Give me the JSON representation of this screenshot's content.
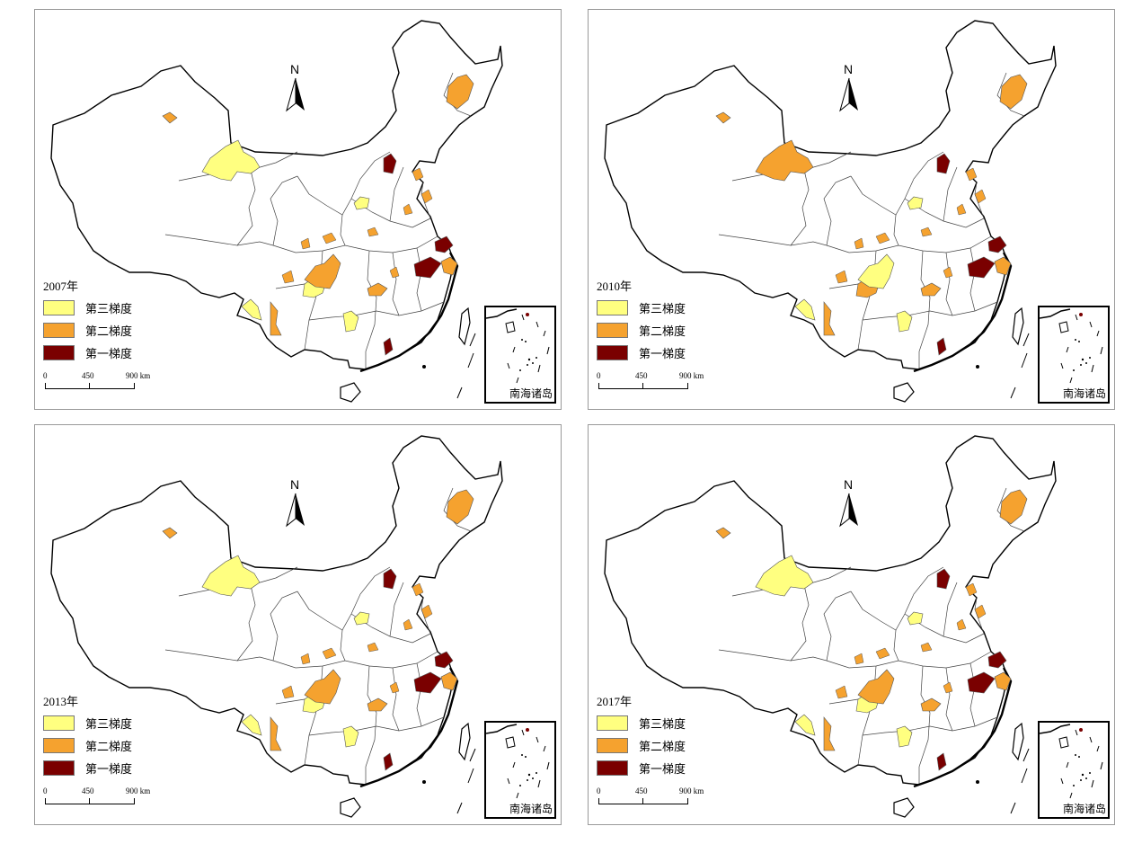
{
  "panels": [
    {
      "year_label": "2007年",
      "colors": {
        "c1": "#ffff80",
        "c2": "#ffff80",
        "c3": "#f5a22f",
        "c4": "#f5a22f",
        "c5": "#f5a22f",
        "c6": "#f5a22f",
        "c7": "#f5a22f",
        "c8": "#f5a22f",
        "c9": "#ffff80",
        "c10": "#ffff80",
        "c11": "#ffff80",
        "c12": "#7a0000",
        "c13": "#7a0000",
        "c14": "#7a0000",
        "c15": "#7a0000"
      }
    },
    {
      "year_label": "2010年",
      "colors": {
        "c1": "#f5a22f",
        "c2": "#f5a22f",
        "c3": "#ffff80",
        "c4": "#f5a22f",
        "c5": "#f5a22f",
        "c6": "#f5a22f",
        "c7": "#f5a22f",
        "c8": "#f5a22f",
        "c9": "#ffff80",
        "c10": "#ffff80",
        "c11": "#ffff80",
        "c12": "#7a0000",
        "c13": "#7a0000",
        "c14": "#7a0000",
        "c15": "#7a0000"
      }
    },
    {
      "year_label": "2013年",
      "colors": {
        "c1": "#ffff80",
        "c2": "#ffff80",
        "c3": "#f5a22f",
        "c4": "#f5a22f",
        "c5": "#f5a22f",
        "c6": "#f5a22f",
        "c7": "#f5a22f",
        "c8": "#f5a22f",
        "c9": "#ffff80",
        "c10": "#ffff80",
        "c11": "#ffff80",
        "c12": "#7a0000",
        "c13": "#7a0000",
        "c14": "#7a0000",
        "c15": "#7a0000"
      }
    },
    {
      "year_label": "2017年",
      "colors": {
        "c1": "#ffff80",
        "c2": "#ffff80",
        "c3": "#f5a22f",
        "c4": "#f5a22f",
        "c5": "#f5a22f",
        "c6": "#f5a22f",
        "c7": "#f5a22f",
        "c8": "#f5a22f",
        "c9": "#ffff80",
        "c10": "#ffff80",
        "c11": "#ffff80",
        "c12": "#7a0000",
        "c13": "#7a0000",
        "c14": "#7a0000",
        "c15": "#7a0000"
      }
    }
  ],
  "legend": [
    {
      "label": "第三梯度",
      "color": "#ffff80"
    },
    {
      "label": "第二梯度",
      "color": "#f5a22f"
    },
    {
      "label": "第一梯度",
      "color": "#7a0000"
    }
  ],
  "scale": {
    "t0": "0",
    "t1": "450",
    "t2": "900 km"
  },
  "north_label": "N",
  "inset_label": "南海诸岛",
  "icons": {
    "north_arrow": "north-arrow-icon"
  }
}
